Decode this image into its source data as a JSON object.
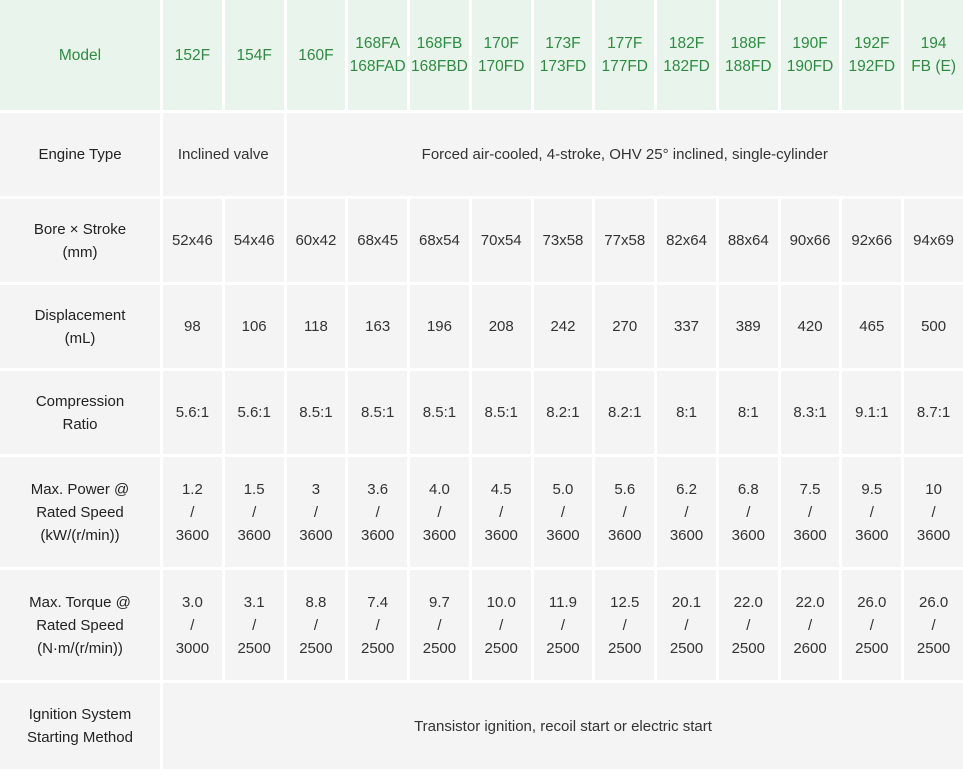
{
  "header": {
    "label": "Model",
    "models": [
      [
        "152F"
      ],
      [
        "154F"
      ],
      [
        "160F"
      ],
      [
        "168FA",
        "168FAD"
      ],
      [
        "168FB",
        "168FBD"
      ],
      [
        "170F",
        "170FD"
      ],
      [
        "173F",
        "173FD"
      ],
      [
        "177F",
        "177FD"
      ],
      [
        "182F",
        "182FD"
      ],
      [
        "188F",
        "188FD"
      ],
      [
        "190F",
        "190FD"
      ],
      [
        "192F",
        "192FD"
      ],
      [
        "194",
        "FB (E)"
      ]
    ]
  },
  "engine_type": {
    "label": "Engine Type",
    "first_value": "Inclined valve",
    "rest_value": "Forced air-cooled, 4-stroke, OHV 25° inclined, single-cylinder"
  },
  "bore_stroke": {
    "label": [
      "Bore × Stroke",
      "(mm)"
    ],
    "values": [
      "52x46",
      "54x46",
      "60x42",
      "68x45",
      "68x54",
      "70x54",
      "73x58",
      "77x58",
      "82x64",
      "88x64",
      "90x66",
      "92x66",
      "94x69"
    ]
  },
  "displacement": {
    "label": [
      "Displacement",
      "(mL)"
    ],
    "values": [
      "98",
      "106",
      "118",
      "163",
      "196",
      "208",
      "242",
      "270",
      "337",
      "389",
      "420",
      "465",
      "500"
    ]
  },
  "compression": {
    "label": [
      "Compression",
      "Ratio"
    ],
    "values": [
      "5.6:1",
      "5.6:1",
      "8.5:1",
      "8.5:1",
      "8.5:1",
      "8.5:1",
      "8.2:1",
      "8.2:1",
      "8:1",
      "8:1",
      "8.3:1",
      "9.1:1",
      "8.7:1"
    ]
  },
  "power": {
    "label": [
      "Max. Power @",
      "Rated Speed",
      "(kW/(r/min))"
    ],
    "values": [
      [
        "1.2",
        "/",
        "3600"
      ],
      [
        "1.5",
        "/",
        "3600"
      ],
      [
        "3",
        "/",
        "3600"
      ],
      [
        "3.6",
        "/",
        "3600"
      ],
      [
        "4.0",
        "/",
        "3600"
      ],
      [
        "4.5",
        "/",
        "3600"
      ],
      [
        "5.0",
        "/",
        "3600"
      ],
      [
        "5.6",
        "/",
        "3600"
      ],
      [
        "6.2",
        "/",
        "3600"
      ],
      [
        "6.8",
        "/",
        "3600"
      ],
      [
        "7.5",
        "/",
        "3600"
      ],
      [
        "9.5",
        "/",
        "3600"
      ],
      [
        "10",
        "/",
        "3600"
      ]
    ]
  },
  "torque": {
    "label": [
      "Max. Torque @",
      "Rated Speed",
      "(N·m/(r/min))"
    ],
    "values": [
      [
        "3.0",
        "/",
        "3000"
      ],
      [
        "3.1",
        "/",
        "2500"
      ],
      [
        "8.8",
        "/",
        "2500"
      ],
      [
        "7.4",
        "/",
        "2500"
      ],
      [
        "9.7",
        "/",
        "2500"
      ],
      [
        "10.0",
        "/",
        "2500"
      ],
      [
        "11.9",
        "/",
        "2500"
      ],
      [
        "12.5",
        "/",
        "2500"
      ],
      [
        "20.1",
        "/",
        "2500"
      ],
      [
        "22.0",
        "/",
        "2500"
      ],
      [
        "22.0",
        "/",
        "2600"
      ],
      [
        "26.0",
        "/",
        "2500"
      ],
      [
        "26.0",
        "/",
        "2500"
      ]
    ]
  },
  "ignition": {
    "label": [
      "Ignition System",
      "Starting Method"
    ],
    "value": "Transistor ignition, recoil start or electric start"
  }
}
